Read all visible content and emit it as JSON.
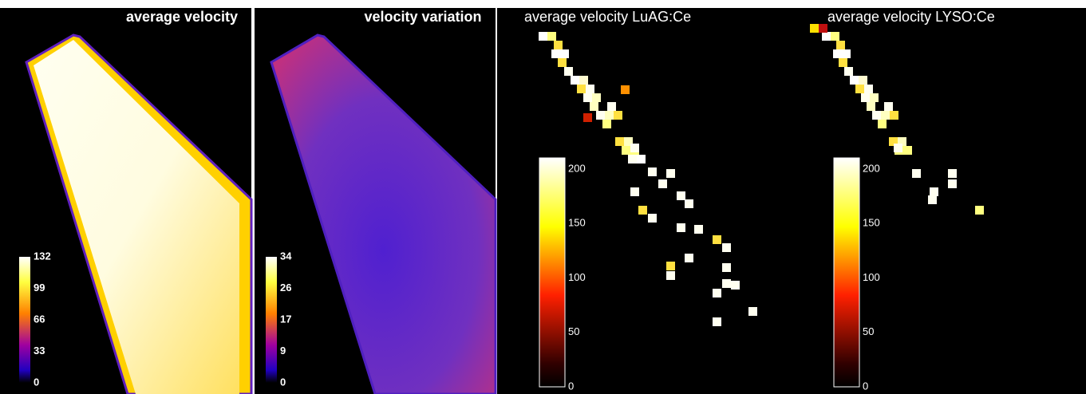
{
  "panels": [
    {
      "title": "average velocity",
      "colorbar_ticks": [
        "132",
        "99",
        "66",
        "33",
        "0"
      ]
    },
    {
      "title": "velocity variation",
      "colorbar_ticks": [
        "34",
        "26",
        "17",
        "9",
        "0"
      ]
    },
    {
      "title": "average velocity LuAG:Ce",
      "colorbar_ticks": [
        "200",
        "150",
        "100",
        "50",
        "0"
      ]
    },
    {
      "title": "average velocity LYSO:Ce",
      "colorbar_ticks": [
        "200",
        "150",
        "100",
        "50",
        "0"
      ]
    }
  ]
}
